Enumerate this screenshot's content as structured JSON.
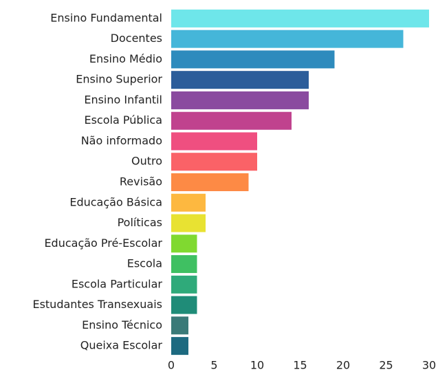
{
  "chart_data": {
    "type": "barh",
    "categories": [
      "Ensino Fundamental",
      "Docentes",
      "Ensino Médio",
      "Ensino Superior",
      "Ensino Infantil",
      "Escola Pública",
      "Não informado",
      "Outro",
      "Revisão",
      "Educação Básica",
      "Políticas",
      "Educação Pré-Escolar",
      "Escola",
      "Escola Particular",
      "Estudantes Transexuais",
      "Ensino Técnico",
      "Queixa Escolar"
    ],
    "values": [
      30,
      27,
      19,
      16,
      16,
      14,
      10,
      10,
      9,
      4,
      4,
      3,
      3,
      3,
      3,
      2,
      2
    ],
    "colors": [
      "#6ee6ea",
      "#45b6d9",
      "#2e8bbd",
      "#2c5d9a",
      "#8a4a9f",
      "#c0428e",
      "#ef4f80",
      "#fa6267",
      "#fd8a45",
      "#fdb840",
      "#e8e232",
      "#80d930",
      "#3fc062",
      "#2faa7a",
      "#1f8c78",
      "#3a7a78",
      "#1d6a80"
    ],
    "xlim": [
      0,
      30
    ],
    "xticks": [
      0,
      5,
      10,
      15,
      20,
      25,
      30
    ],
    "grid": false
  }
}
